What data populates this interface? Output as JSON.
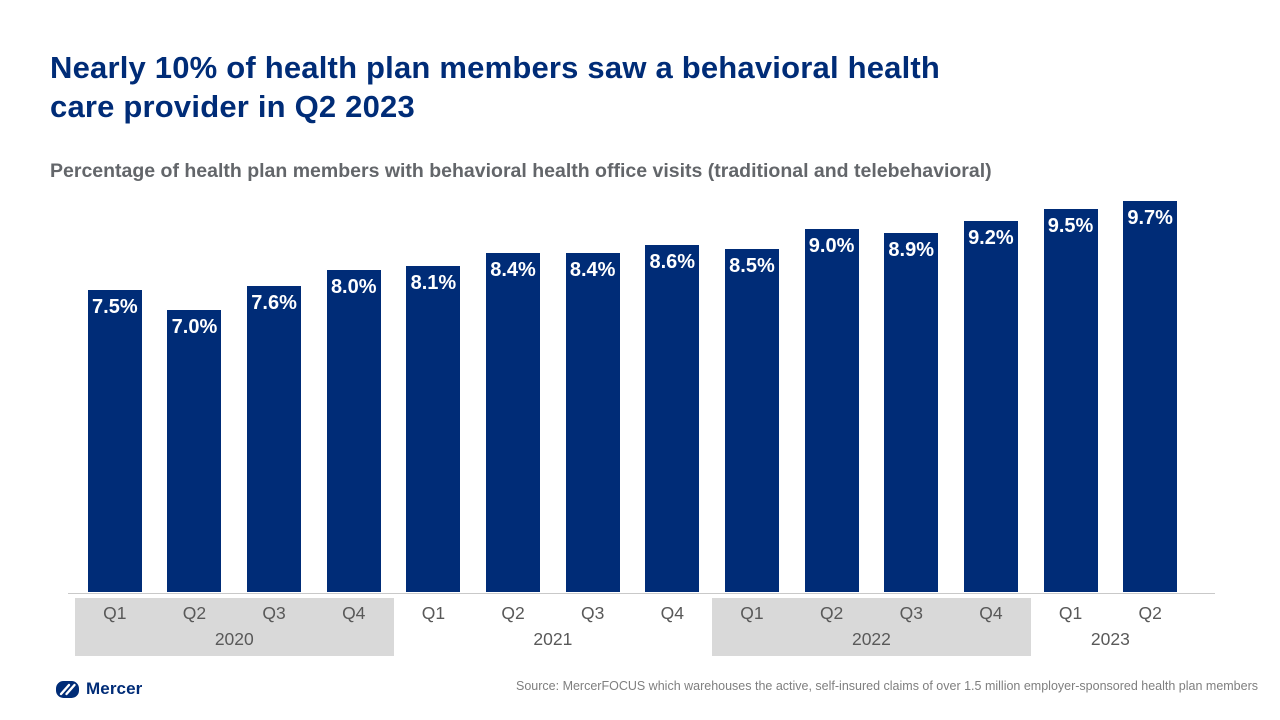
{
  "title": {
    "line1": "Nearly 10% of health plan members saw a behavioral health",
    "line2": "care provider in Q2 2023"
  },
  "subtitle": "Percentage of health plan members with behavioral health office visits (traditional and telebehavioral)",
  "chart_data": {
    "type": "bar",
    "title": "Nearly 10% of health plan members saw a behavioral health care provider in Q2 2023",
    "axis_description": "Percentage of health plan members with behavioral health office visits (traditional and telebehavioral)",
    "categories": [
      "Q1",
      "Q2",
      "Q3",
      "Q4",
      "Q1",
      "Q2",
      "Q3",
      "Q4",
      "Q1",
      "Q2",
      "Q3",
      "Q4",
      "Q1",
      "Q2"
    ],
    "values": [
      7.5,
      7.0,
      7.6,
      8.0,
      8.1,
      8.4,
      8.4,
      8.6,
      8.5,
      9.0,
      8.9,
      9.2,
      9.5,
      9.7
    ],
    "labels": [
      "7.5%",
      "7.0%",
      "7.6%",
      "8.0%",
      "8.1%",
      "8.4%",
      "8.4%",
      "8.6%",
      "8.5%",
      "9.0%",
      "8.9%",
      "9.2%",
      "9.5%",
      "9.7%"
    ],
    "year_groups": [
      {
        "year": "2020",
        "quarters": [
          "Q1",
          "Q2",
          "Q3",
          "Q4"
        ],
        "shaded": true
      },
      {
        "year": "2021",
        "quarters": [
          "Q1",
          "Q2",
          "Q3",
          "Q4"
        ],
        "shaded": false
      },
      {
        "year": "2022",
        "quarters": [
          "Q1",
          "Q2",
          "Q3",
          "Q4"
        ],
        "shaded": true
      },
      {
        "year": "2023",
        "quarters": [
          "Q1",
          "Q2"
        ],
        "shaded": false
      }
    ],
    "ylim": [
      0,
      10
    ],
    "grid": false,
    "legend": "none",
    "bar_color": "#002c77",
    "data_label_color": "#ffffff",
    "shaded_band_color": "#d9d9d9"
  },
  "footer": {
    "logo_text": "Mercer",
    "source": "Source: MercerFOCUS  which warehouses the active, self-insured  claims of over  1.5 million employer-sponsored  health plan members"
  },
  "colors": {
    "brand_navy": "#002c77",
    "subtitle_gray": "#63666a",
    "axis_gray": "#595959",
    "band_gray": "#d9d9d9",
    "source_gray": "#7f7f7f"
  }
}
